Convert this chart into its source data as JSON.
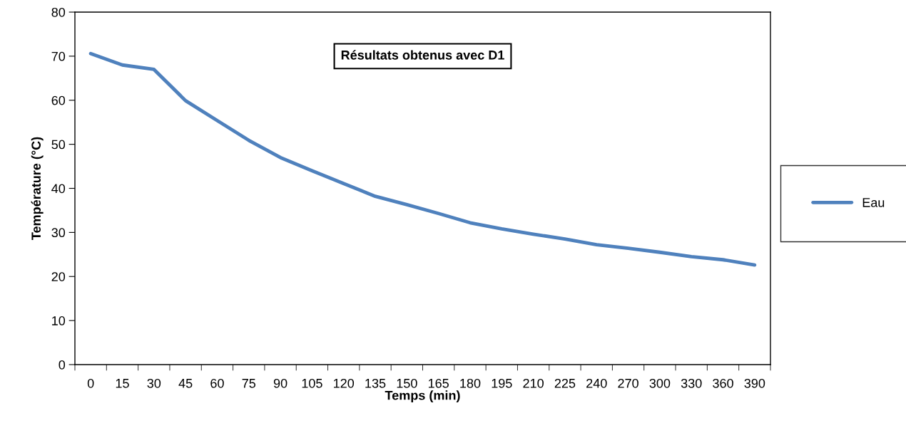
{
  "chart_data": {
    "type": "line",
    "title": "Résultats obtenus avec D1",
    "xlabel": "Temps (min)",
    "ylabel": "Température (°C)",
    "categories": [
      "0",
      "15",
      "30",
      "45",
      "60",
      "75",
      "90",
      "105",
      "120",
      "135",
      "150",
      "165",
      "180",
      "195",
      "210",
      "225",
      "240",
      "270",
      "300",
      "330",
      "360",
      "390"
    ],
    "series": [
      {
        "name": "Eau",
        "color": "#4f81bd",
        "values": [
          70.6,
          68.0,
          67.0,
          59.9,
          55.4,
          50.9,
          47.0,
          44.0,
          41.1,
          38.2,
          36.3,
          34.3,
          32.2,
          30.8,
          29.6,
          28.5,
          27.2,
          26.4,
          25.5,
          24.5,
          23.8,
          22.6
        ]
      }
    ],
    "ylim": [
      0,
      80
    ],
    "yticks": [
      0,
      10,
      20,
      30,
      40,
      50,
      60,
      70,
      80
    ],
    "grid": false,
    "legend": "right",
    "marker": "none",
    "line_style": "solid"
  }
}
